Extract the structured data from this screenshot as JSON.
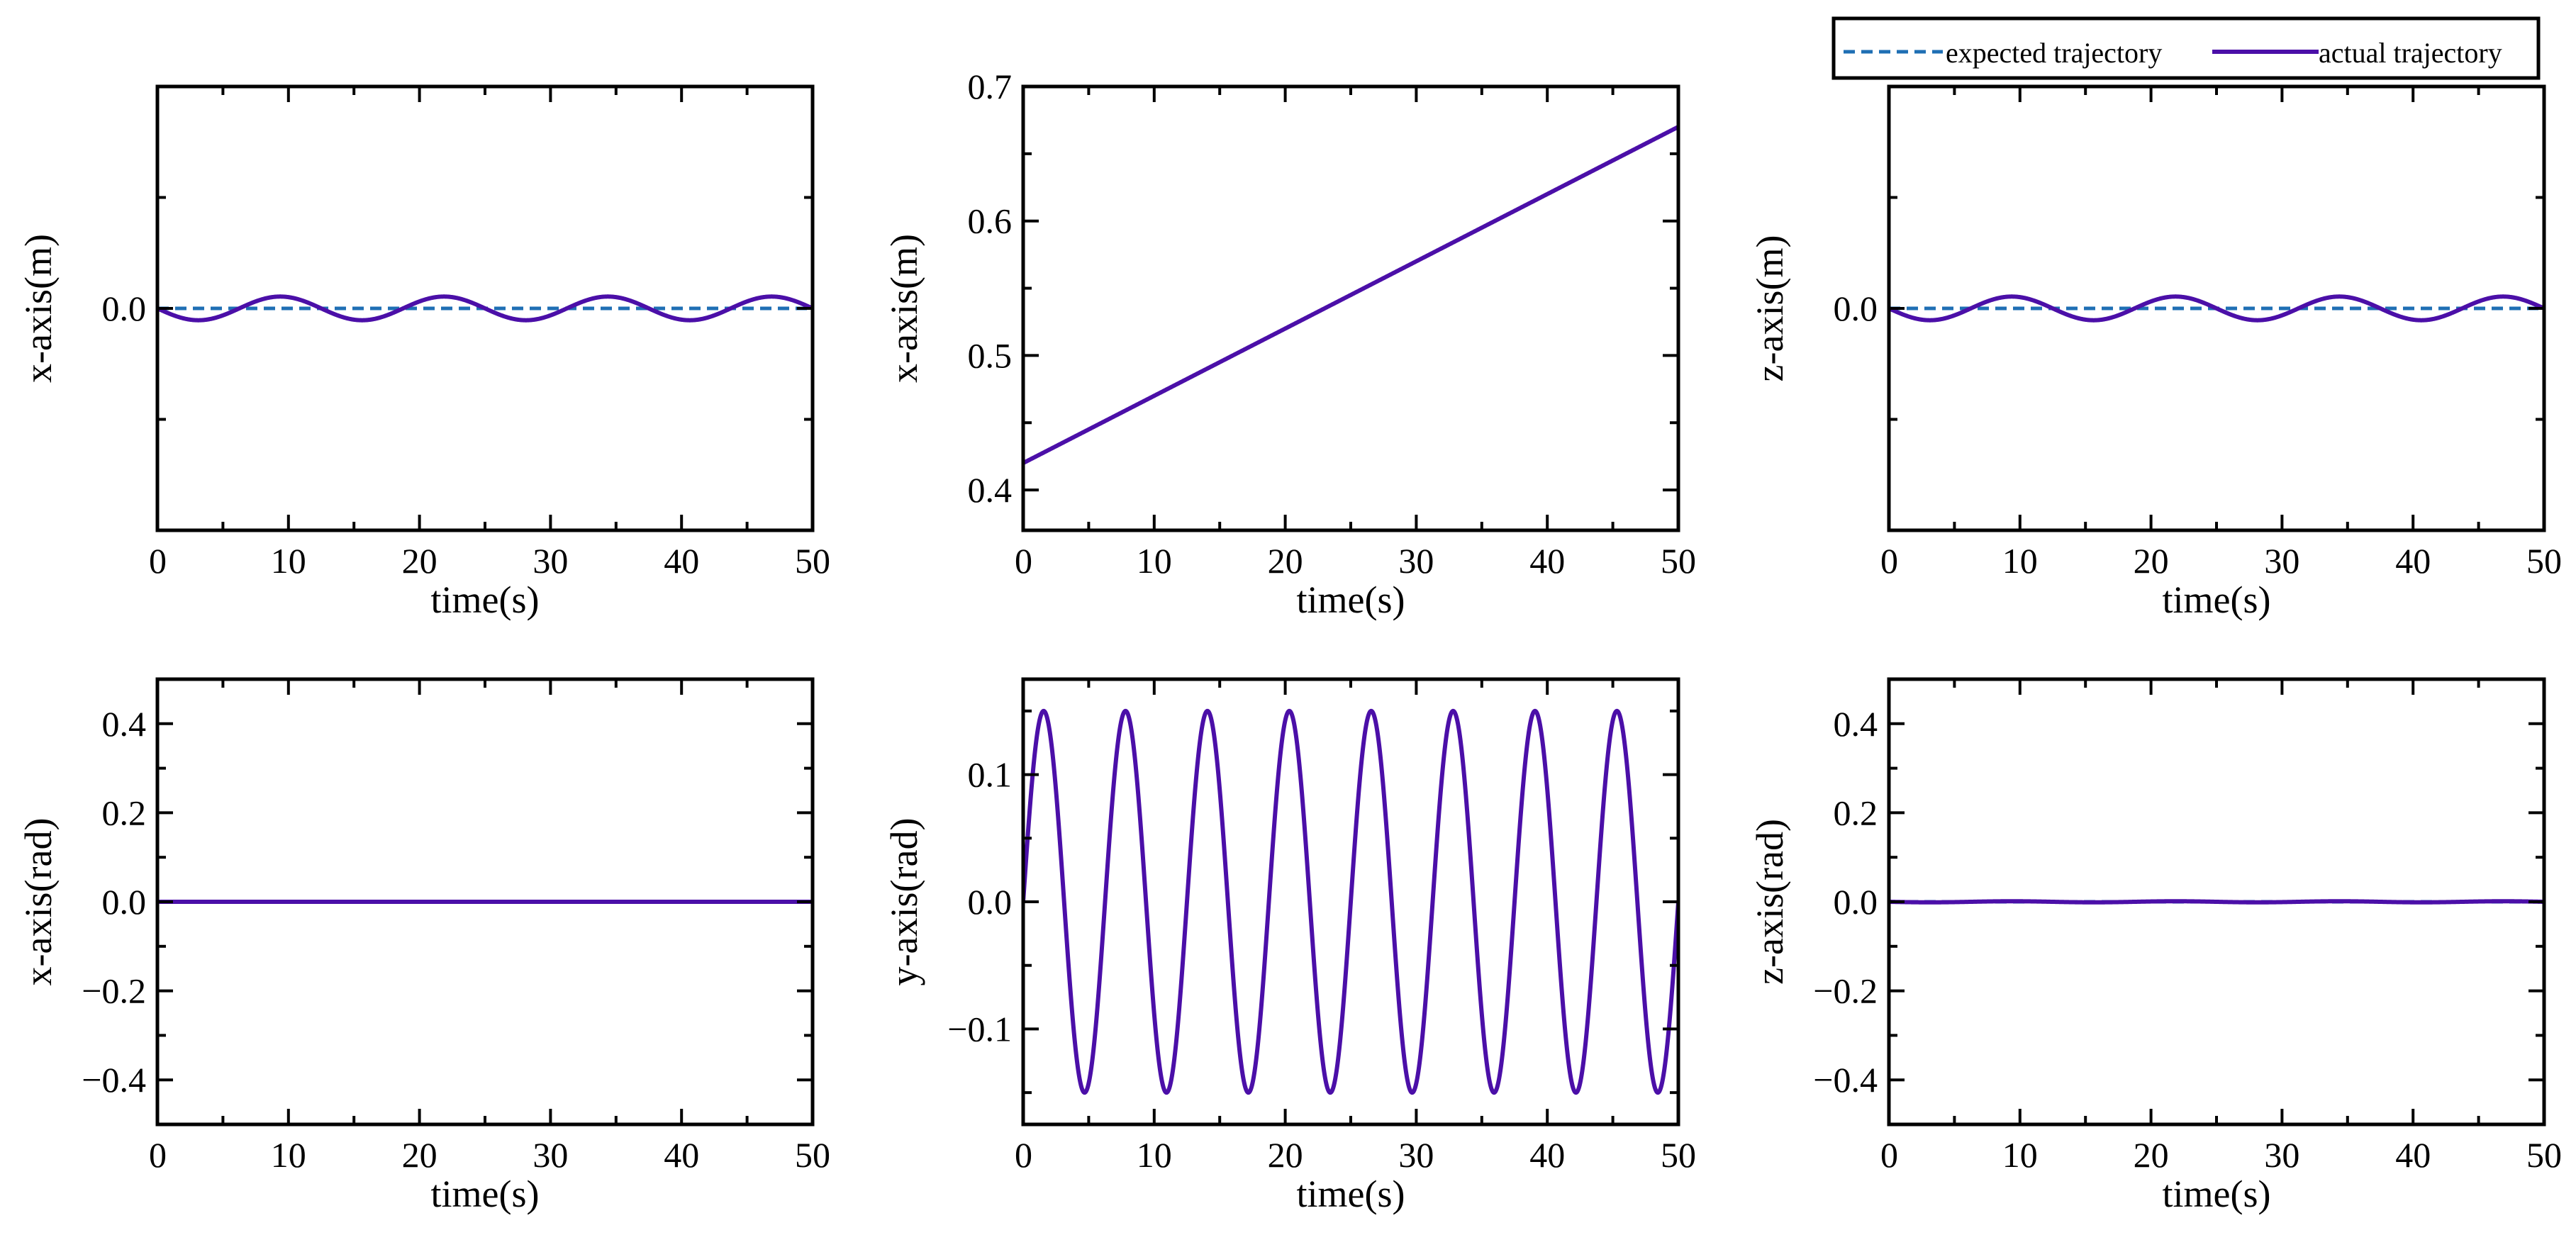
{
  "legend": {
    "expected_label": "expected trajectory",
    "actual_label": "actual trajectory",
    "placement": "top-right, above right column"
  },
  "colors": {
    "expected": "#1f6fb4",
    "actual": "#4b0fa8"
  },
  "chart_data": [
    {
      "type": "line",
      "id": "p1",
      "ylabel": "x-axis(m)",
      "xlabel": "time(s)",
      "xlim": [
        0,
        50
      ],
      "ylim": [
        -0.06,
        0.06
      ],
      "xticks": [
        0,
        10,
        20,
        30,
        40,
        50
      ],
      "xtick_labels": [
        "0",
        "10",
        "20",
        "30",
        "40",
        "50"
      ],
      "yticks": [
        0.0
      ],
      "ytick_labels": [
        "0.0"
      ],
      "series": [
        {
          "name": "expected trajectory",
          "style": "dashed",
          "formula": "constant",
          "params": {
            "c": 0
          }
        },
        {
          "name": "actual trajectory",
          "style": "solid",
          "formula": "neg_sine",
          "params": {
            "amp": 0.0032,
            "period": 12.5
          }
        }
      ]
    },
    {
      "type": "line",
      "id": "p2",
      "ylabel": "x-axis(m)",
      "xlabel": "time(s)",
      "xlim": [
        0,
        50
      ],
      "ylim": [
        0.37,
        0.7
      ],
      "xticks": [
        0,
        10,
        20,
        30,
        40,
        50
      ],
      "xtick_labels": [
        "0",
        "10",
        "20",
        "30",
        "40",
        "50"
      ],
      "yticks": [
        0.4,
        0.5,
        0.6,
        0.7
      ],
      "ytick_labels": [
        "0.4",
        "0.5",
        "0.6",
        "0.7"
      ],
      "series": [
        {
          "name": "expected trajectory",
          "style": "dashed",
          "formula": "linear",
          "params": {
            "y0": 0.42,
            "y1": 0.67
          }
        },
        {
          "name": "actual trajectory",
          "style": "solid",
          "formula": "linear",
          "params": {
            "y0": 0.42,
            "y1": 0.67
          }
        }
      ]
    },
    {
      "type": "line",
      "id": "p3",
      "ylabel": "z-axis(m)",
      "xlabel": "time(s)",
      "xlim": [
        0,
        50
      ],
      "ylim": [
        -0.06,
        0.06
      ],
      "xticks": [
        0,
        10,
        20,
        30,
        40,
        50
      ],
      "xtick_labels": [
        "0",
        "10",
        "20",
        "30",
        "40",
        "50"
      ],
      "yticks": [
        0.0
      ],
      "ytick_labels": [
        "0.0"
      ],
      "series": [
        {
          "name": "expected trajectory",
          "style": "dashed",
          "formula": "constant",
          "params": {
            "c": 0
          }
        },
        {
          "name": "actual trajectory",
          "style": "solid",
          "formula": "neg_sine",
          "params": {
            "amp": 0.0032,
            "period": 12.5
          }
        }
      ]
    },
    {
      "type": "line",
      "id": "p4",
      "ylabel": "x-axis(rad)",
      "xlabel": "time(s)",
      "xlim": [
        0,
        50
      ],
      "ylim": [
        -0.5,
        0.5
      ],
      "xticks": [
        0,
        10,
        20,
        30,
        40,
        50
      ],
      "xtick_labels": [
        "0",
        "10",
        "20",
        "30",
        "40",
        "50"
      ],
      "yticks": [
        0.4,
        0.2,
        0.0,
        -0.2,
        -0.4
      ],
      "ytick_labels": [
        "0.4",
        "0.2",
        "0.0",
        "−0.2",
        "−0.4"
      ],
      "series": [
        {
          "name": "expected trajectory",
          "style": "dashed",
          "formula": "constant",
          "params": {
            "c": 0
          }
        },
        {
          "name": "actual trajectory",
          "style": "solid",
          "formula": "constant",
          "params": {
            "c": 0
          }
        }
      ]
    },
    {
      "type": "line",
      "id": "p5",
      "ylabel": "y-axis(rad)",
      "xlabel": "time(s)",
      "xlim": [
        0,
        50
      ],
      "ylim": [
        -0.175,
        0.175
      ],
      "xticks": [
        0,
        10,
        20,
        30,
        40,
        50
      ],
      "xtick_labels": [
        "0",
        "10",
        "20",
        "30",
        "40",
        "50"
      ],
      "yticks": [
        0.1,
        0.0,
        -0.1
      ],
      "ytick_labels": [
        "0.1",
        "0.0",
        "−0.1"
      ],
      "series": [
        {
          "name": "expected trajectory",
          "style": "dashed",
          "formula": "sine",
          "params": {
            "amp": 0.15,
            "period": 6.25
          }
        },
        {
          "name": "actual trajectory",
          "style": "solid",
          "formula": "sine",
          "params": {
            "amp": 0.15,
            "period": 6.25
          }
        }
      ]
    },
    {
      "type": "line",
      "id": "p6",
      "ylabel": "z-axis(rad)",
      "xlabel": "time(s)",
      "xlim": [
        0,
        50
      ],
      "ylim": [
        -0.5,
        0.5
      ],
      "xticks": [
        0,
        10,
        20,
        30,
        40,
        50
      ],
      "xtick_labels": [
        "0",
        "10",
        "20",
        "30",
        "40",
        "50"
      ],
      "yticks": [
        0.4,
        0.2,
        0.0,
        -0.2,
        -0.4
      ],
      "ytick_labels": [
        "0.4",
        "0.2",
        "0.0",
        "−0.2",
        "−0.4"
      ],
      "series": [
        {
          "name": "expected trajectory",
          "style": "dashed",
          "formula": "constant",
          "params": {
            "c": 0
          }
        },
        {
          "name": "actual trajectory",
          "style": "solid",
          "formula": "neg_sine",
          "params": {
            "amp": 0.0012,
            "period": 12.5
          }
        }
      ]
    }
  ]
}
